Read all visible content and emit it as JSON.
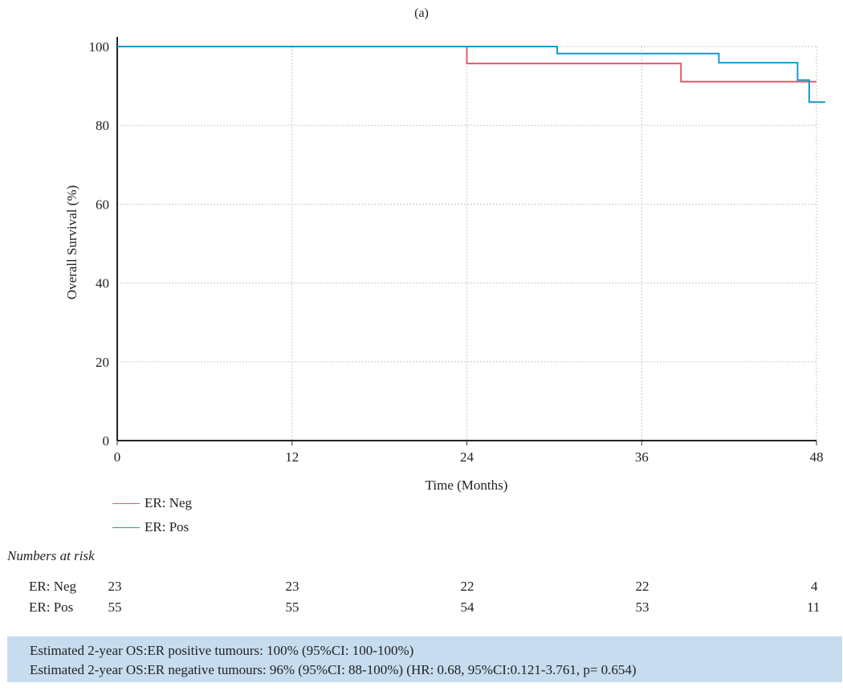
{
  "panel_label": "(a)",
  "chart_data": {
    "type": "line",
    "step": true,
    "title": "",
    "xlabel": "Time (Months)",
    "ylabel": "Overall Survival (%)",
    "xlim": [
      0,
      48
    ],
    "ylim": [
      0,
      100
    ],
    "xticks": [
      0,
      12,
      24,
      36,
      48
    ],
    "yticks": [
      0,
      20,
      40,
      60,
      80,
      100
    ],
    "grid": true,
    "legend_position": "bottom-left",
    "series": [
      {
        "name": "ER: Neg",
        "color": "#e05a6d",
        "points": [
          [
            0,
            100
          ],
          [
            24,
            100
          ],
          [
            24,
            95.7
          ],
          [
            38.7,
            95.7
          ],
          [
            38.7,
            91.1
          ],
          [
            48,
            91.1
          ]
        ]
      },
      {
        "name": "ER: Pos",
        "color": "#1a96d0",
        "points": [
          [
            0,
            100
          ],
          [
            30.2,
            100
          ],
          [
            30.2,
            98.2
          ],
          [
            41.3,
            98.2
          ],
          [
            41.3,
            95.9
          ],
          [
            46.7,
            95.9
          ],
          [
            46.7,
            91.5
          ],
          [
            47.5,
            91.5
          ],
          [
            47.5,
            85.9
          ],
          [
            48.6,
            85.9
          ]
        ]
      }
    ]
  },
  "risk_table": {
    "title": "Numbers at risk",
    "times": [
      0,
      12,
      24,
      36,
      48
    ],
    "rows": [
      {
        "label": "ER: Neg",
        "values": [
          "23",
          "23",
          "22",
          "22",
          "4"
        ]
      },
      {
        "label": "ER: Pos",
        "values": [
          "55",
          "55",
          "54",
          "53",
          "11"
        ]
      }
    ]
  },
  "info_box": {
    "line1": "Estimated 2-year OS:ER positive tumours: 100% (95%CI: 100-100%)",
    "line2": "Estimated 2-year OS:ER negative tumours: 96% (95%CI: 88-100%) (HR: 0.68, 95%CI:0.121-3.761, p= 0.654)",
    "background": "#c7dcef"
  }
}
